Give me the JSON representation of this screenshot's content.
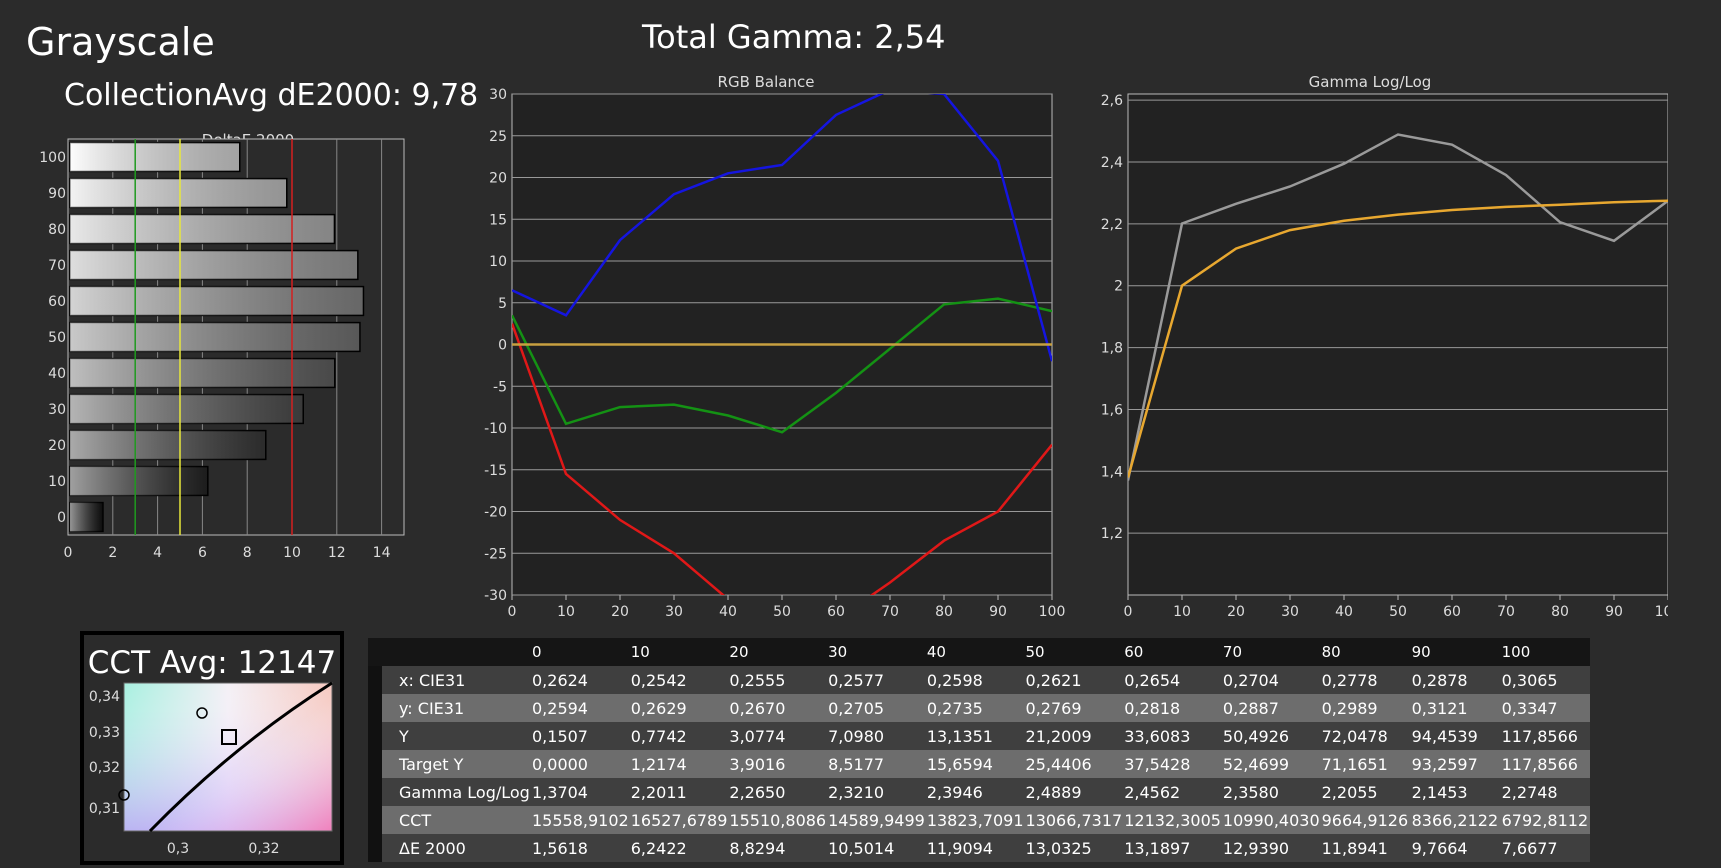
{
  "header": {
    "title": "Grayscale",
    "gamma_label": "Total Gamma: 2,54",
    "avg_label": "CollectionAvg dE2000: 9,78"
  },
  "chart_data": [
    {
      "type": "bar",
      "orientation": "horizontal",
      "title": "DeltaE 2000",
      "categories": [
        "0",
        "10",
        "20",
        "30",
        "40",
        "50",
        "60",
        "70",
        "80",
        "90",
        "100"
      ],
      "values": [
        1.5618,
        6.2422,
        8.8294,
        10.5014,
        11.9094,
        13.0325,
        13.1897,
        12.939,
        11.8941,
        9.7664,
        7.6677
      ],
      "xlim": [
        0,
        15
      ],
      "xticks": [
        "0",
        "2",
        "4",
        "6",
        "8",
        "10",
        "12",
        "14"
      ],
      "reference_lines": [
        {
          "value": 3,
          "color": "#1f9a1f"
        },
        {
          "value": 5,
          "color": "#e8e83a"
        },
        {
          "value": 10,
          "color": "#d42020"
        }
      ]
    },
    {
      "type": "line",
      "title": "RGB Balance",
      "x": [
        0,
        10,
        20,
        30,
        40,
        50,
        60,
        70,
        80,
        90,
        100
      ],
      "ylim": [
        -30,
        30
      ],
      "yticks": [
        "30",
        "25",
        "20",
        "15",
        "10",
        "5",
        "0",
        "-5",
        "-10",
        "-15",
        "-20",
        "-25",
        "-30"
      ],
      "xticks": [
        "0",
        "10",
        "20",
        "30",
        "40",
        "50",
        "60",
        "70",
        "80",
        "90",
        "100"
      ],
      "series": [
        {
          "color": "#e01818",
          "values": [
            2.5,
            -15.5,
            -21,
            -25,
            -30.5,
            -33,
            -33,
            -28.5,
            -23.5,
            -20,
            -12
          ]
        },
        {
          "color": "#149214",
          "values": [
            3.5,
            -9.5,
            -7.5,
            -7.2,
            -8.5,
            -10.5,
            -5.8,
            -0.5,
            4.8,
            5.5,
            4
          ]
        },
        {
          "color": "#1515e0",
          "values": [
            6.5,
            3.5,
            12.5,
            18,
            20.5,
            21.5,
            27.5,
            30.5,
            30,
            22,
            -2
          ]
        },
        {
          "color": "#c8a040",
          "values": [
            0,
            0,
            0,
            0,
            0,
            0,
            0,
            0,
            0,
            0,
            0
          ]
        }
      ]
    },
    {
      "type": "line",
      "title": "Gamma Log/Log",
      "x": [
        0,
        10,
        20,
        30,
        40,
        50,
        60,
        70,
        80,
        90,
        100
      ],
      "ylim": [
        1.0,
        2.62
      ],
      "yticks": [
        "2,6",
        "2,4",
        "2,2",
        "2",
        "1,8",
        "1,6",
        "1,4",
        "1,2"
      ],
      "xticks": [
        "0",
        "10",
        "20",
        "30",
        "40",
        "50",
        "60",
        "70",
        "80",
        "90",
        "100"
      ],
      "series": [
        {
          "color": "#9a9a9a",
          "values": [
            1.3704,
            2.2011,
            2.265,
            2.321,
            2.3946,
            2.4889,
            2.4562,
            2.358,
            2.2055,
            2.1453,
            2.2748
          ]
        },
        {
          "color": "#e8a830",
          "values": [
            1.38,
            2.0,
            2.12,
            2.18,
            2.21,
            2.23,
            2.245,
            2.255,
            2.262,
            2.27,
            2.275
          ]
        }
      ]
    }
  ],
  "cct": {
    "title": "CCT Avg: 12147",
    "yticks": [
      "0,34",
      "0,33",
      "0,32",
      "0,31"
    ],
    "xticks": [
      "0,3",
      "0,32"
    ]
  },
  "table": {
    "headers": [
      "",
      "0",
      "10",
      "20",
      "30",
      "40",
      "50",
      "60",
      "70",
      "80",
      "90",
      "100"
    ],
    "rows": [
      [
        "x: CIE31",
        "0,2624",
        "0,2542",
        "0,2555",
        "0,2577",
        "0,2598",
        "0,2621",
        "0,2654",
        "0,2704",
        "0,2778",
        "0,2878",
        "0,3065"
      ],
      [
        "y: CIE31",
        "0,2594",
        "0,2629",
        "0,2670",
        "0,2705",
        "0,2735",
        "0,2769",
        "0,2818",
        "0,2887",
        "0,2989",
        "0,3121",
        "0,3347"
      ],
      [
        "Y",
        "0,1507",
        "0,7742",
        "3,0774",
        "7,0980",
        "13,1351",
        "21,2009",
        "33,6083",
        "50,4926",
        "72,0478",
        "94,4539",
        "117,8566"
      ],
      [
        "Target Y",
        "0,0000",
        "1,2174",
        "3,9016",
        "8,5177",
        "15,6594",
        "25,4406",
        "37,5428",
        "52,4699",
        "71,1651",
        "93,2597",
        "117,8566"
      ],
      [
        "Gamma Log/Log",
        "1,3704",
        "2,2011",
        "2,2650",
        "2,3210",
        "2,3946",
        "2,4889",
        "2,4562",
        "2,3580",
        "2,2055",
        "2,1453",
        "2,2748"
      ],
      [
        "CCT",
        "15558,9102",
        "16527,6789",
        "15510,8086",
        "14589,9499",
        "13823,7091",
        "13066,7317",
        "12132,3005",
        "10990,4030",
        "9664,9126",
        "8366,2122",
        "6792,8112"
      ],
      [
        "ΔE 2000",
        "1,5618",
        "6,2422",
        "8,8294",
        "10,5014",
        "11,9094",
        "13,0325",
        "13,1897",
        "12,9390",
        "11,8941",
        "9,7664",
        "7,6677"
      ]
    ]
  }
}
